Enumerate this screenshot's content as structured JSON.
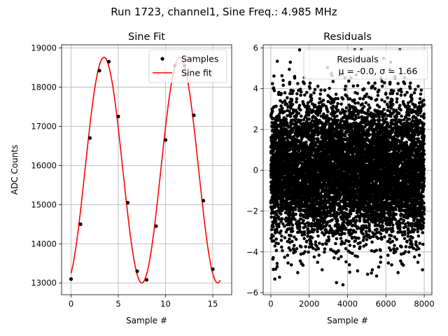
{
  "figure": {
    "suptitle": "Run 1723, channel1, Sine Freq.: 4.985 MHz"
  },
  "colors": {
    "samples": "#000000",
    "fit": "#ff0000",
    "residuals": "#000000",
    "grid": "#b0b0b0"
  },
  "chart_data": [
    {
      "type": "line",
      "title": "Sine Fit",
      "xlabel": "Sample #",
      "ylabel": "ADC Counts",
      "xlim": [
        -1,
        17
      ],
      "ylim": [
        12700,
        19080
      ],
      "xticks": [
        0,
        5,
        10,
        15
      ],
      "yticks": [
        13000,
        14000,
        15000,
        16000,
        17000,
        18000,
        19000
      ],
      "grid": true,
      "legend_position": "upper right",
      "series": [
        {
          "name": "Samples",
          "style": "markers",
          "x": [
            0,
            1,
            2,
            3,
            4,
            5,
            6,
            7,
            8,
            9,
            10,
            11,
            12,
            13,
            14,
            15
          ],
          "values": [
            13100,
            14500,
            16700,
            18420,
            18650,
            17250,
            15050,
            13300,
            13080,
            14450,
            16650,
            18550,
            18550,
            17280,
            15100,
            13350
          ]
        },
        {
          "name": "Sine fit",
          "style": "line",
          "model": {
            "offset": 15880,
            "amplitude": 2880,
            "period": 8.025,
            "phase_offset": 3.48,
            "x_range": [
              0,
              15.8
            ]
          }
        }
      ]
    },
    {
      "type": "scatter",
      "title": "Residuals",
      "xlabel": "Sample #",
      "ylabel": "",
      "xlim": [
        -400,
        8400
      ],
      "ylim": [
        -6.1,
        6.15
      ],
      "xticks": [
        0,
        2000,
        4000,
        6000,
        8000
      ],
      "yticks": [
        -6,
        -4,
        -2,
        0,
        2,
        4,
        6
      ],
      "grid": true,
      "legend_position": "upper right",
      "series": [
        {
          "name": "Residuals",
          "style": "markers",
          "n_points": 8000,
          "x_range": [
            0,
            8000
          ],
          "mean": -0.0,
          "std": 1.66
        }
      ],
      "annotation": "μ = -0.0, σ = 1.66"
    }
  ]
}
